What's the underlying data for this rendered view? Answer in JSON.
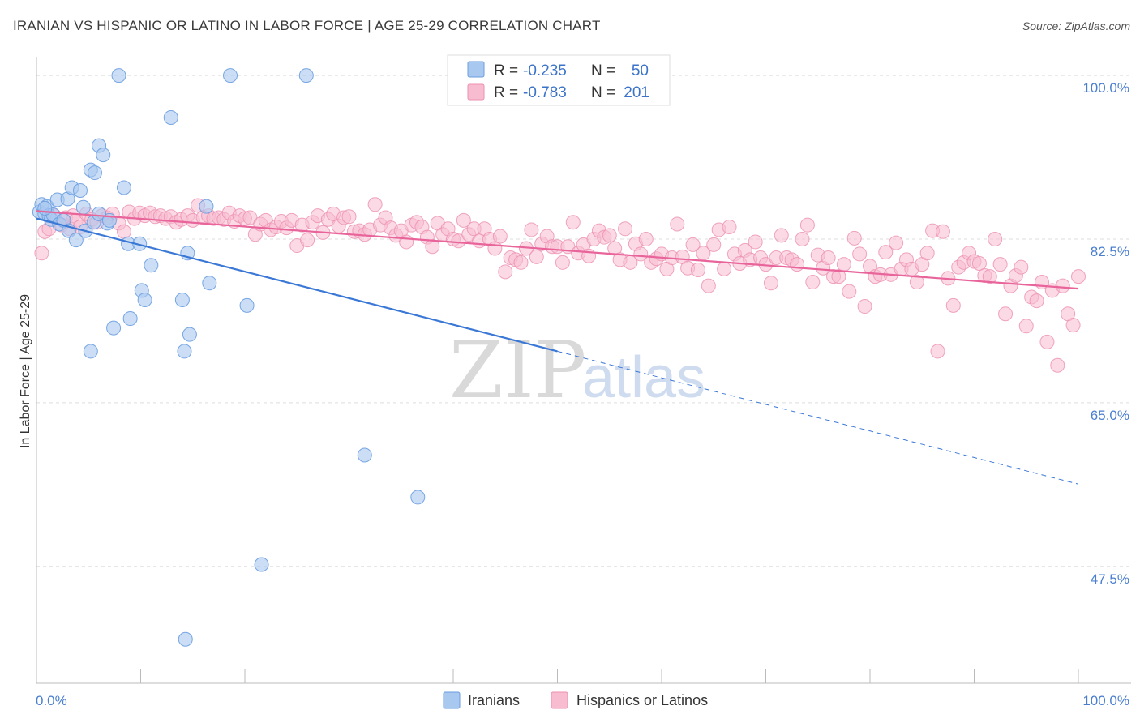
{
  "title": "IRANIAN VS HISPANIC OR LATINO IN LABOR FORCE | AGE 25-29 CORRELATION CHART",
  "source": "Source: ZipAtlas.com",
  "colors": {
    "iranian_fill": "#a9c8f0",
    "iranian_stroke": "#6a9de0",
    "iranian_line": "#3b78d6",
    "hispanic_fill": "#f7bcd0",
    "hispanic_stroke": "#ec8fb0",
    "hispanic_line": "#e8649a",
    "grid": "#dddddd",
    "tick_label": "#4a7fd0"
  },
  "watermark": {
    "zip": "ZIP",
    "atlas": "atlas"
  },
  "legend": {
    "rows": [
      {
        "r_label": "R =",
        "r_value": "-0.235",
        "n_label": "N =",
        "n_value": "50"
      },
      {
        "r_label": "R =",
        "r_value": "-0.783",
        "n_label": "N =",
        "n_value": "201"
      }
    ]
  },
  "bottom_legend": {
    "iranians": "Iranians",
    "hispanics": "Hispanics or Latinos"
  },
  "chart_data": {
    "type": "scatter",
    "title": "IRANIAN VS HISPANIC OR LATINO IN LABOR FORCE | AGE 25-29 CORRELATION CHART",
    "xlabel": "",
    "ylabel": "In Labor Force | Age 25-29",
    "xlim": [
      0,
      100
    ],
    "ylim": [
      35,
      102
    ],
    "x_tick_labels": [
      "0.0%",
      "100.0%"
    ],
    "y_ticks": [
      47.5,
      65.0,
      82.5,
      100.0
    ],
    "y_tick_labels": [
      "47.5%",
      "65.0%",
      "82.5%",
      "100.0%"
    ],
    "grid": true,
    "legend_position": "top-center",
    "series": [
      {
        "name": "Iranians",
        "r": -0.235,
        "n": 50,
        "trend": {
          "x": [
            0,
            100
          ],
          "y": [
            84.7,
            56.3
          ],
          "solid_until_x": 50
        },
        "points": [
          [
            0.3,
            85.4
          ],
          [
            0.5,
            86.2
          ],
          [
            0.8,
            85.2
          ],
          [
            1.0,
            86.0
          ],
          [
            1.2,
            85.0
          ],
          [
            1.4,
            84.6
          ],
          [
            1.6,
            85.1
          ],
          [
            2.0,
            86.7
          ],
          [
            2.2,
            84.1
          ],
          [
            2.6,
            84.5
          ],
          [
            3.0,
            86.8
          ],
          [
            3.1,
            83.4
          ],
          [
            3.4,
            88.0
          ],
          [
            3.8,
            82.4
          ],
          [
            4.2,
            87.7
          ],
          [
            4.5,
            85.9
          ],
          [
            4.7,
            83.4
          ],
          [
            5.2,
            89.9
          ],
          [
            5.5,
            84.3
          ],
          [
            5.6,
            89.6
          ],
          [
            6.0,
            85.2
          ],
          [
            6.0,
            92.5
          ],
          [
            6.4,
            91.5
          ],
          [
            6.8,
            84.2
          ],
          [
            7.0,
            84.5
          ],
          [
            7.4,
            73.0
          ],
          [
            7.9,
            100.0
          ],
          [
            8.4,
            88.0
          ],
          [
            8.8,
            82.0
          ],
          [
            9.0,
            74.0
          ],
          [
            9.9,
            82.0
          ],
          [
            10.1,
            77.0
          ],
          [
            10.4,
            76.0
          ],
          [
            11.0,
            79.7
          ],
          [
            12.9,
            95.5
          ],
          [
            14.0,
            76.0
          ],
          [
            14.2,
            70.5
          ],
          [
            14.5,
            81.0
          ],
          [
            14.7,
            72.3
          ],
          [
            16.3,
            86.0
          ],
          [
            16.6,
            77.8
          ],
          [
            18.6,
            100.0
          ],
          [
            20.2,
            75.4
          ],
          [
            21.6,
            47.7
          ],
          [
            25.9,
            100.0
          ],
          [
            31.5,
            59.4
          ],
          [
            36.6,
            54.9
          ],
          [
            14.3,
            39.7
          ],
          [
            5.2,
            70.5
          ],
          [
            0.8,
            85.8
          ]
        ]
      },
      {
        "name": "Hispanics or Latinos",
        "r": -0.783,
        "n": 201,
        "trend": {
          "x": [
            0,
            100
          ],
          "y": [
            85.5,
            77.2
          ]
        },
        "points": [
          [
            0.5,
            81.0
          ],
          [
            0.8,
            83.3
          ],
          [
            1.2,
            83.6
          ],
          [
            1.7,
            85.0
          ],
          [
            2.4,
            84.0
          ],
          [
            2.8,
            84.8
          ],
          [
            3.2,
            83.6
          ],
          [
            3.5,
            85.0
          ],
          [
            3.8,
            84.5
          ],
          [
            4.2,
            83.8
          ],
          [
            4.8,
            85.2
          ],
          [
            5.3,
            84.6
          ],
          [
            5.8,
            84.3
          ],
          [
            6.3,
            85.0
          ],
          [
            6.8,
            84.8
          ],
          [
            7.3,
            85.2
          ],
          [
            7.9,
            84.2
          ],
          [
            8.4,
            83.3
          ],
          [
            8.9,
            85.4
          ],
          [
            9.4,
            84.7
          ],
          [
            9.9,
            85.3
          ],
          [
            10.4,
            85.0
          ],
          [
            10.9,
            85.3
          ],
          [
            11.4,
            84.9
          ],
          [
            11.9,
            85.0
          ],
          [
            12.4,
            84.7
          ],
          [
            12.9,
            84.9
          ],
          [
            13.4,
            84.3
          ],
          [
            13.9,
            84.6
          ],
          [
            14.5,
            85.0
          ],
          [
            15.0,
            84.5
          ],
          [
            15.5,
            86.1
          ],
          [
            16.0,
            84.8
          ],
          [
            16.5,
            85.0
          ],
          [
            17.0,
            84.7
          ],
          [
            17.5,
            84.8
          ],
          [
            18.0,
            84.6
          ],
          [
            18.5,
            85.3
          ],
          [
            19.0,
            84.4
          ],
          [
            19.5,
            85.0
          ],
          [
            20.0,
            84.7
          ],
          [
            20.5,
            84.8
          ],
          [
            21.0,
            83.0
          ],
          [
            21.5,
            84.1
          ],
          [
            22.0,
            84.5
          ],
          [
            22.5,
            83.5
          ],
          [
            23.0,
            83.8
          ],
          [
            23.5,
            84.4
          ],
          [
            24.0,
            83.7
          ],
          [
            24.5,
            84.5
          ],
          [
            25.0,
            81.8
          ],
          [
            25.5,
            84.0
          ],
          [
            26.0,
            82.4
          ],
          [
            26.5,
            84.3
          ],
          [
            27.0,
            85.0
          ],
          [
            27.5,
            83.2
          ],
          [
            28.0,
            84.6
          ],
          [
            28.5,
            85.2
          ],
          [
            29.0,
            83.9
          ],
          [
            29.5,
            84.8
          ],
          [
            30.0,
            84.9
          ],
          [
            30.5,
            83.3
          ],
          [
            31.0,
            83.4
          ],
          [
            31.5,
            83.0
          ],
          [
            32.0,
            83.5
          ],
          [
            32.5,
            86.2
          ],
          [
            33.0,
            84.0
          ],
          [
            33.5,
            84.8
          ],
          [
            34.0,
            83.7
          ],
          [
            34.5,
            82.9
          ],
          [
            35.0,
            83.4
          ],
          [
            35.5,
            82.2
          ],
          [
            36.0,
            84.0
          ],
          [
            36.5,
            84.3
          ],
          [
            37.0,
            83.8
          ],
          [
            37.5,
            82.7
          ],
          [
            38.0,
            81.7
          ],
          [
            38.5,
            84.2
          ],
          [
            39.0,
            83.0
          ],
          [
            39.5,
            83.6
          ],
          [
            40.0,
            82.5
          ],
          [
            40.5,
            82.3
          ],
          [
            41.0,
            84.5
          ],
          [
            41.5,
            83.0
          ],
          [
            42.0,
            83.6
          ],
          [
            42.5,
            82.3
          ],
          [
            43.0,
            83.6
          ],
          [
            43.5,
            82.5
          ],
          [
            44.0,
            81.5
          ],
          [
            44.5,
            82.8
          ],
          [
            45.0,
            79.0
          ],
          [
            45.5,
            80.5
          ],
          [
            46.0,
            80.3
          ],
          [
            46.5,
            80.0
          ],
          [
            47.0,
            81.5
          ],
          [
            47.5,
            83.5
          ],
          [
            48.0,
            80.6
          ],
          [
            48.5,
            82.0
          ],
          [
            49.0,
            82.8
          ],
          [
            49.5,
            81.7
          ],
          [
            50.0,
            81.7
          ],
          [
            50.5,
            80.0
          ],
          [
            51.0,
            81.7
          ],
          [
            51.5,
            84.3
          ],
          [
            52.0,
            81.0
          ],
          [
            52.5,
            81.9
          ],
          [
            53.0,
            80.7
          ],
          [
            53.5,
            82.5
          ],
          [
            54.0,
            83.4
          ],
          [
            54.5,
            82.7
          ],
          [
            55.0,
            82.9
          ],
          [
            55.5,
            81.5
          ],
          [
            56.0,
            80.3
          ],
          [
            56.5,
            83.6
          ],
          [
            57.0,
            80.0
          ],
          [
            57.5,
            82.0
          ],
          [
            58.0,
            80.9
          ],
          [
            58.5,
            82.5
          ],
          [
            59.0,
            80.0
          ],
          [
            59.5,
            80.4
          ],
          [
            60.0,
            80.9
          ],
          [
            60.5,
            79.3
          ],
          [
            61.0,
            80.5
          ],
          [
            61.5,
            84.1
          ],
          [
            62.0,
            80.6
          ],
          [
            62.5,
            79.4
          ],
          [
            63.0,
            81.9
          ],
          [
            63.5,
            79.2
          ],
          [
            64.0,
            81.0
          ],
          [
            64.5,
            77.5
          ],
          [
            65.0,
            81.9
          ],
          [
            65.5,
            83.5
          ],
          [
            66.0,
            79.3
          ],
          [
            66.5,
            83.8
          ],
          [
            67.0,
            80.9
          ],
          [
            67.5,
            79.9
          ],
          [
            68.0,
            81.3
          ],
          [
            68.5,
            80.3
          ],
          [
            69.0,
            82.2
          ],
          [
            69.5,
            80.5
          ],
          [
            70.0,
            79.8
          ],
          [
            70.5,
            77.8
          ],
          [
            71.0,
            80.5
          ],
          [
            71.5,
            82.9
          ],
          [
            72.0,
            80.5
          ],
          [
            72.5,
            80.3
          ],
          [
            73.0,
            79.8
          ],
          [
            73.5,
            82.5
          ],
          [
            74.0,
            84.0
          ],
          [
            74.5,
            77.9
          ],
          [
            75.0,
            80.8
          ],
          [
            75.5,
            79.4
          ],
          [
            76.0,
            80.5
          ],
          [
            76.5,
            78.5
          ],
          [
            77.0,
            78.5
          ],
          [
            77.5,
            79.8
          ],
          [
            78.0,
            76.9
          ],
          [
            78.5,
            82.6
          ],
          [
            79.0,
            80.9
          ],
          [
            79.5,
            75.3
          ],
          [
            80.0,
            79.6
          ],
          [
            80.5,
            78.5
          ],
          [
            81.0,
            78.7
          ],
          [
            81.5,
            81.1
          ],
          [
            82.0,
            78.7
          ],
          [
            82.5,
            82.1
          ],
          [
            83.0,
            79.3
          ],
          [
            83.5,
            80.3
          ],
          [
            84.0,
            79.3
          ],
          [
            84.5,
            77.9
          ],
          [
            85.0,
            79.8
          ],
          [
            85.5,
            81.0
          ],
          [
            86.0,
            83.4
          ],
          [
            86.5,
            70.5
          ],
          [
            87.0,
            83.3
          ],
          [
            87.5,
            78.3
          ],
          [
            88.0,
            75.4
          ],
          [
            88.5,
            79.5
          ],
          [
            89.0,
            80.0
          ],
          [
            89.5,
            81.0
          ],
          [
            90.0,
            80.1
          ],
          [
            90.5,
            79.9
          ],
          [
            91.0,
            78.6
          ],
          [
            91.5,
            78.5
          ],
          [
            92.0,
            82.5
          ],
          [
            92.5,
            79.8
          ],
          [
            93.0,
            74.5
          ],
          [
            93.5,
            77.5
          ],
          [
            94.0,
            78.6
          ],
          [
            94.5,
            79.5
          ],
          [
            95.0,
            73.2
          ],
          [
            95.5,
            76.3
          ],
          [
            96.0,
            75.9
          ],
          [
            96.5,
            77.9
          ],
          [
            97.0,
            71.5
          ],
          [
            97.5,
            77.0
          ],
          [
            98.0,
            69.0
          ],
          [
            98.5,
            77.5
          ],
          [
            99.0,
            74.5
          ],
          [
            99.5,
            73.3
          ],
          [
            100.0,
            78.5
          ]
        ]
      }
    ]
  }
}
